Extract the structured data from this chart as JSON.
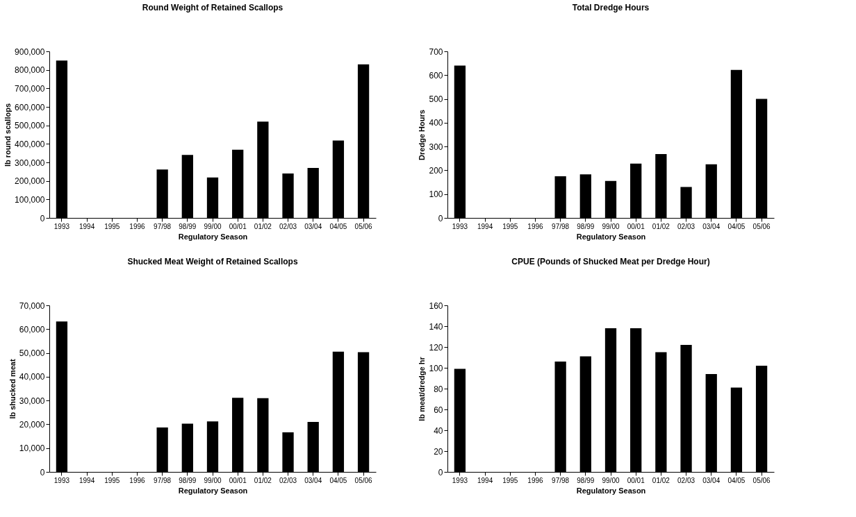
{
  "chart_data": [
    {
      "type": "bar",
      "title": "Round Weight of Retained Scallops",
      "xlabel": "Regulatory Season",
      "ylabel": "lb round scallops",
      "categories": [
        "1993",
        "1994",
        "1995",
        "1996",
        "97/98",
        "98/99",
        "99/00",
        "00/01",
        "01/02",
        "02/03",
        "03/04",
        "04/05",
        "05/06"
      ],
      "values": [
        850000,
        null,
        null,
        null,
        262000,
        340000,
        218000,
        368000,
        520000,
        240000,
        270000,
        418000,
        830000
      ],
      "color": "#000000",
      "ylim": [
        0,
        900000
      ],
      "yticks": [
        0,
        {
          "value": 100000,
          "label": "100,000"
        },
        {
          "value": 200000,
          "label": "200,000"
        },
        {
          "value": 300000,
          "label": "300,000"
        },
        {
          "value": 400000,
          "label": "400,000"
        },
        {
          "value": 500000,
          "label": "500,000"
        },
        {
          "value": 600000,
          "label": "600,000"
        },
        {
          "value": 700000,
          "label": "700,000"
        },
        {
          "value": 800000,
          "label": "800,000"
        },
        {
          "value": 900000,
          "label": "900,000"
        }
      ],
      "grid": false
    },
    {
      "type": "bar",
      "title": "Total Dredge Hours",
      "xlabel": "Regulatory Season",
      "ylabel": "Dredge Hours",
      "categories": [
        "1993",
        "1994",
        "1995",
        "1996",
        "97/98",
        "98/99",
        "99/00",
        "00/01",
        "01/02",
        "02/03",
        "03/04",
        "04/05",
        "05/06"
      ],
      "values": [
        640,
        null,
        null,
        null,
        175,
        183,
        155,
        228,
        268,
        130,
        225,
        622,
        500
      ],
      "color": "#000000",
      "ylim": [
        0,
        700
      ],
      "yticks": [
        0,
        100,
        200,
        300,
        400,
        500,
        600,
        700
      ],
      "grid": false
    },
    {
      "type": "bar",
      "title": "Shucked Meat Weight of Retained Scallops",
      "xlabel": "Regulatory Season",
      "ylabel": "lb shucked meat",
      "categories": [
        "1993",
        "1994",
        "1995",
        "1996",
        "97/98",
        "98/99",
        "99/00",
        "00/01",
        "01/02",
        "02/03",
        "03/04",
        "04/05",
        "05/06"
      ],
      "values": [
        63200,
        null,
        null,
        null,
        18700,
        20300,
        21200,
        31100,
        31000,
        16600,
        21000,
        50500,
        50300
      ],
      "color": "#000000",
      "ylim": [
        0,
        70000
      ],
      "yticks": [
        0,
        {
          "value": 10000,
          "label": "10,000"
        },
        {
          "value": 20000,
          "label": "20,000"
        },
        {
          "value": 30000,
          "label": "30,000"
        },
        {
          "value": 40000,
          "label": "40,000"
        },
        {
          "value": 50000,
          "label": "50,000"
        },
        {
          "value": 60000,
          "label": "60,000"
        },
        {
          "value": 70000,
          "label": "70,000"
        }
      ],
      "grid": false
    },
    {
      "type": "bar",
      "title": "CPUE (Pounds of Shucked Meat per Dredge Hour)",
      "xlabel": "Regulatory Season",
      "ylabel": "lb meat/dredge hr",
      "categories": [
        "1993",
        "1994",
        "1995",
        "1996",
        "97/98",
        "98/99",
        "99/00",
        "00/01",
        "01/02",
        "02/03",
        "03/04",
        "04/05",
        "05/06"
      ],
      "values": [
        99,
        null,
        null,
        null,
        106,
        111,
        138,
        138,
        115,
        122,
        94,
        81,
        102
      ],
      "color": "#000000",
      "ylim": [
        0,
        160
      ],
      "yticks": [
        0,
        20,
        40,
        60,
        80,
        100,
        120,
        140,
        160
      ],
      "grid": false
    }
  ]
}
